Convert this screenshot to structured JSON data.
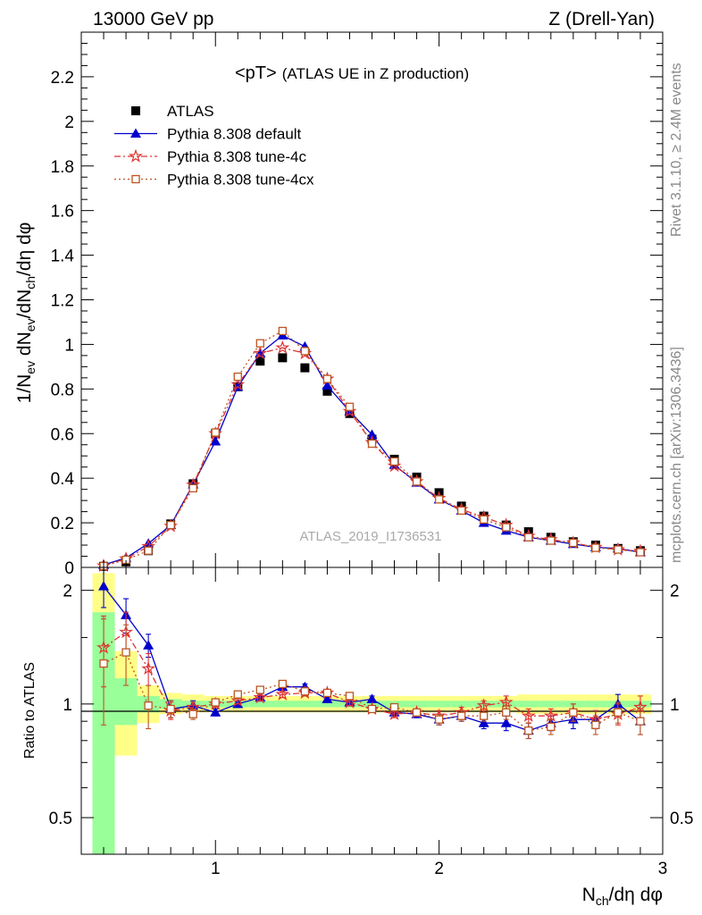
{
  "header": {
    "left": "13000 GeV pp",
    "right": "Z (Drell-Yan)"
  },
  "side": {
    "top": "Rivet 3.1.10, ≥ 2.4M events",
    "bottom": "mcplots.cern.ch [arXiv:1306.3436]"
  },
  "chart_data": [
    {
      "type": "scatter",
      "title": "<pT> (ATLAS UE in Z production)",
      "title_main": "<pT>",
      "title_sub": "(ATLAS UE in Z production)",
      "watermark": "ATLAS_2019_I1736531",
      "xlabel": "Nch/dη dφ",
      "ylabel": "1/Nev dNev/dNch/dη dφ",
      "xlim": [
        0.4,
        3.0
      ],
      "ylim": [
        0,
        2.4
      ],
      "yticks": [
        "0",
        "0.2",
        "0.4",
        "0.6",
        "0.8",
        "1",
        "1.2",
        "1.4",
        "1.6",
        "1.8",
        "2",
        "2.2"
      ],
      "legend_position": "top-left",
      "x": [
        0.5,
        0.6,
        0.7,
        0.8,
        0.9,
        1.0,
        1.1,
        1.2,
        1.3,
        1.4,
        1.5,
        1.6,
        1.7,
        1.8,
        1.9,
        2.0,
        2.1,
        2.2,
        2.3,
        2.4,
        2.5,
        2.6,
        2.7,
        2.8,
        2.9
      ],
      "series": [
        {
          "name": "ATLAS",
          "color": "#000000",
          "marker": "square",
          "values": [
            0.005,
            0.025,
            0.075,
            0.195,
            0.375,
            0.6,
            0.81,
            0.925,
            0.94,
            0.895,
            0.79,
            0.69,
            0.575,
            0.485,
            0.405,
            0.335,
            0.275,
            0.23,
            0.19,
            0.16,
            0.135,
            0.115,
            0.1,
            0.085,
            0.075
          ]
        },
        {
          "name": "Pythia 8.308 default",
          "color": "#0000cc",
          "marker": "triangle",
          "line": "solid",
          "values": [
            0.011,
            0.043,
            0.107,
            0.19,
            0.372,
            0.565,
            0.81,
            0.96,
            1.04,
            0.99,
            0.815,
            0.7,
            0.595,
            0.46,
            0.38,
            0.305,
            0.255,
            0.2,
            0.165,
            0.135,
            0.12,
            0.105,
            0.09,
            0.085,
            0.068
          ]
        },
        {
          "name": "Pythia 8.308 tune-4c",
          "color": "#dd3333",
          "marker": "star",
          "line": "dashdot",
          "values": [
            0.007,
            0.039,
            0.094,
            0.185,
            0.37,
            0.6,
            0.82,
            0.96,
            0.985,
            0.96,
            0.845,
            0.7,
            0.56,
            0.455,
            0.385,
            0.31,
            0.26,
            0.225,
            0.19,
            0.14,
            0.125,
            0.11,
            0.09,
            0.08,
            0.073
          ]
        },
        {
          "name": "Pythia 8.308 tune-4cx",
          "color": "#bb5522",
          "marker": "opensquare",
          "line": "dotted",
          "values": [
            0.0065,
            0.034,
            0.075,
            0.19,
            0.355,
            0.605,
            0.855,
            1.005,
            1.06,
            0.97,
            0.845,
            0.72,
            0.555,
            0.475,
            0.385,
            0.305,
            0.255,
            0.215,
            0.18,
            0.135,
            0.12,
            0.11,
            0.088,
            0.08,
            0.068
          ]
        }
      ]
    },
    {
      "type": "scatter",
      "ylabel": "Ratio to ATLAS",
      "ylim": [
        0.4,
        2.3
      ],
      "yscale": "log",
      "yticks": [
        "0.5",
        "1",
        "2"
      ],
      "xticks": [
        "1",
        "2",
        "3"
      ],
      "x": [
        0.5,
        0.6,
        0.7,
        0.8,
        0.9,
        1.0,
        1.1,
        1.2,
        1.3,
        1.4,
        1.5,
        1.6,
        1.7,
        1.8,
        1.9,
        2.0,
        2.1,
        2.2,
        2.3,
        2.4,
        2.5,
        2.6,
        2.7,
        2.8,
        2.9
      ],
      "band_inner": [
        [
          0.35,
          1.75
        ],
        [
          0.88,
          1.17
        ],
        [
          0.95,
          1.05
        ],
        [
          0.97,
          1.03
        ],
        [
          0.98,
          1.02
        ],
        [
          0.98,
          1.02
        ],
        [
          0.98,
          1.02
        ],
        [
          0.98,
          1.02
        ],
        [
          0.98,
          1.02
        ],
        [
          0.98,
          1.02
        ],
        [
          0.98,
          1.02
        ],
        [
          0.98,
          1.02
        ],
        [
          0.98,
          1.02
        ],
        [
          0.98,
          1.02
        ],
        [
          0.98,
          1.02
        ],
        [
          0.98,
          1.02
        ],
        [
          0.98,
          1.02
        ],
        [
          0.98,
          1.02
        ],
        [
          0.98,
          1.02
        ],
        [
          0.98,
          1.02
        ],
        [
          0.98,
          1.02
        ],
        [
          0.98,
          1.02
        ],
        [
          0.98,
          1.02
        ],
        [
          0.98,
          1.02
        ],
        [
          0.98,
          1.02
        ]
      ],
      "band_outer": [
        [
          0.35,
          2.22
        ],
        [
          0.73,
          1.38
        ],
        [
          0.89,
          1.12
        ],
        [
          0.94,
          1.07
        ],
        [
          0.95,
          1.06
        ],
        [
          0.95,
          1.05
        ],
        [
          0.95,
          1.05
        ],
        [
          0.95,
          1.05
        ],
        [
          0.95,
          1.05
        ],
        [
          0.95,
          1.05
        ],
        [
          0.95,
          1.05
        ],
        [
          0.95,
          1.05
        ],
        [
          0.95,
          1.05
        ],
        [
          0.95,
          1.05
        ],
        [
          0.95,
          1.05
        ],
        [
          0.95,
          1.05
        ],
        [
          0.95,
          1.05
        ],
        [
          0.95,
          1.05
        ],
        [
          0.95,
          1.05
        ],
        [
          0.94,
          1.06
        ],
        [
          0.94,
          1.06
        ],
        [
          0.94,
          1.06
        ],
        [
          0.94,
          1.06
        ],
        [
          0.94,
          1.06
        ],
        [
          0.94,
          1.06
        ]
      ],
      "series": [
        {
          "name": "Pythia 8.308 default",
          "color": "#0000cc",
          "marker": "triangle",
          "line": "solid",
          "values": [
            2.05,
            1.72,
            1.43,
            0.97,
            0.99,
            0.95,
            1.0,
            1.04,
            1.11,
            1.11,
            1.03,
            1.01,
            1.03,
            0.95,
            0.94,
            0.91,
            0.93,
            0.89,
            0.89,
            0.85,
            0.89,
            0.91,
            0.91,
            1.0,
            0.9
          ],
          "err": [
            0.25,
            0.18,
            0.1,
            0.05,
            0.03,
            0.02,
            0.02,
            0.02,
            0.02,
            0.02,
            0.02,
            0.02,
            0.02,
            0.02,
            0.02,
            0.03,
            0.03,
            0.03,
            0.04,
            0.04,
            0.04,
            0.05,
            0.05,
            0.06,
            0.07
          ]
        },
        {
          "name": "Pythia 8.308 tune-4c",
          "color": "#dd3333",
          "marker": "star",
          "line": "dashdot",
          "values": [
            1.41,
            1.55,
            1.24,
            0.96,
            0.98,
            1.0,
            1.02,
            1.04,
            1.06,
            1.07,
            1.07,
            1.01,
            0.97,
            0.94,
            0.95,
            0.93,
            0.95,
            0.99,
            1.01,
            0.93,
            0.93,
            0.95,
            0.91,
            0.94,
            0.98
          ],
          "err": [
            0.3,
            0.2,
            0.12,
            0.05,
            0.03,
            0.02,
            0.02,
            0.02,
            0.02,
            0.02,
            0.02,
            0.02,
            0.02,
            0.02,
            0.02,
            0.03,
            0.03,
            0.03,
            0.04,
            0.04,
            0.04,
            0.05,
            0.05,
            0.06,
            0.07
          ]
        },
        {
          "name": "Pythia 8.308 tune-4cx",
          "color": "#bb5522",
          "marker": "opensquare",
          "line": "dotted",
          "values": [
            1.28,
            1.37,
            0.99,
            0.97,
            0.94,
            1.01,
            1.06,
            1.09,
            1.13,
            1.08,
            1.07,
            1.05,
            0.97,
            0.98,
            0.95,
            0.91,
            0.93,
            0.93,
            0.95,
            0.85,
            0.87,
            0.95,
            0.88,
            0.95,
            0.9
          ],
          "err": [
            0.4,
            0.25,
            0.13,
            0.05,
            0.03,
            0.02,
            0.02,
            0.02,
            0.02,
            0.02,
            0.02,
            0.02,
            0.02,
            0.02,
            0.02,
            0.03,
            0.03,
            0.03,
            0.04,
            0.04,
            0.04,
            0.05,
            0.05,
            0.06,
            0.07
          ]
        }
      ]
    }
  ]
}
